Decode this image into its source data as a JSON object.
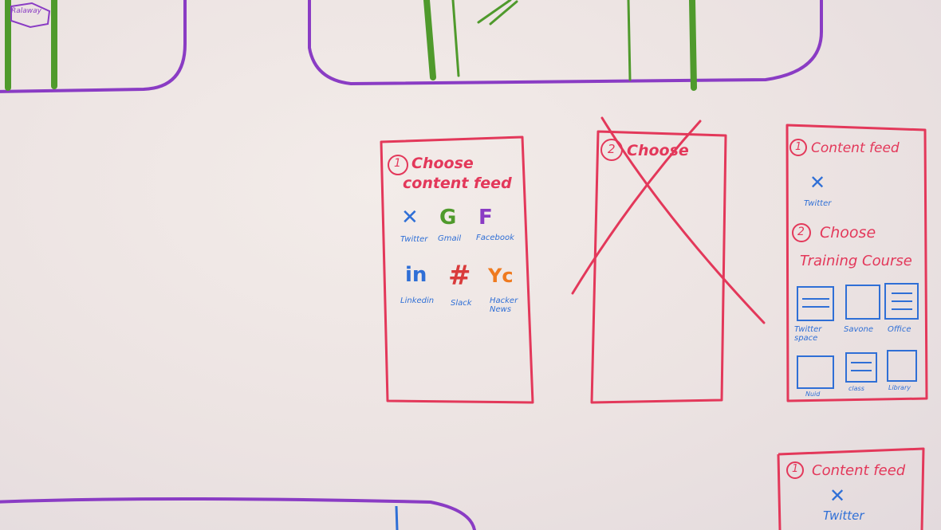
{
  "colors": {
    "red_marker": "#e3385a",
    "purple_marker": "#8a3cc4",
    "green_marker": "#4f9a2c",
    "blue_marker": "#2f6fd6",
    "orange_marker": "#ef7a1f"
  },
  "top_left_sketch": {
    "label": "Ralaway"
  },
  "wireframe_1": {
    "step_number": "1",
    "title_line1": "Choose",
    "title_line2": "content feed",
    "apps": [
      {
        "label": "Twitter",
        "icon": "bird-icon"
      },
      {
        "label": "Gmail",
        "icon": "G"
      },
      {
        "label": "Facebook",
        "icon": "F"
      },
      {
        "label": "Linkedin",
        "icon": "in"
      },
      {
        "label": "Slack",
        "icon": "#"
      },
      {
        "label": "Hacker News",
        "icon": "Yc"
      }
    ]
  },
  "wireframe_2": {
    "step_number": "2",
    "title": "Choose",
    "state": "crossed-out"
  },
  "wireframe_3": {
    "step1_number": "1",
    "step1_title": "Content feed",
    "selected_feed": "Twitter",
    "step2_number": "2",
    "step2_title_line1": "Choose",
    "step2_title_line2": "Training Course",
    "courses": [
      {
        "label": "Twitter space"
      },
      {
        "label": "Savone"
      },
      {
        "label": "Office"
      },
      {
        "label": "Nuid"
      },
      {
        "label": "class"
      },
      {
        "label": "Library"
      }
    ]
  },
  "wireframe_4": {
    "step_number": "1",
    "title": "Content feed",
    "selected_feed": "Twitter"
  }
}
